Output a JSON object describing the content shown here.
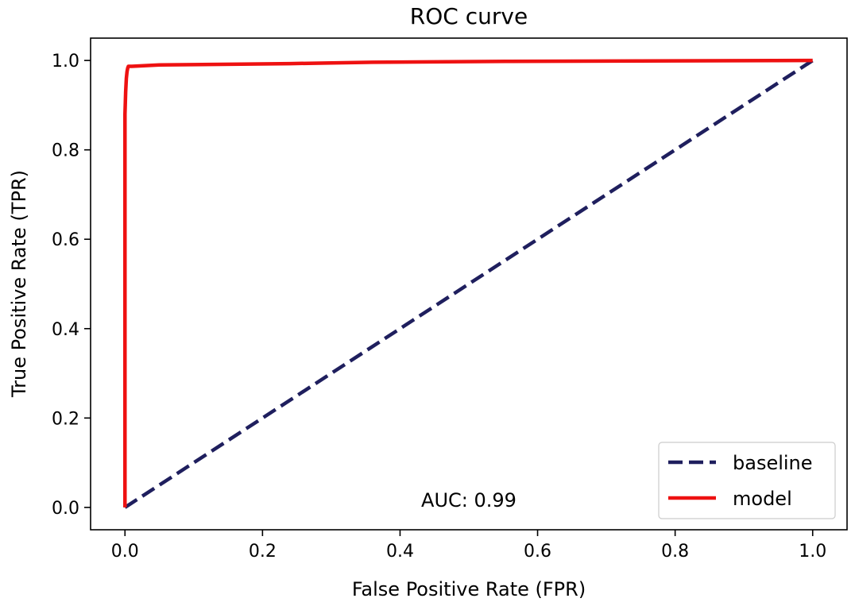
{
  "chart_data": {
    "type": "line",
    "title": "ROC curve",
    "xlabel": "False Positive Rate (FPR)",
    "ylabel": "True Positive Rate (TPR)",
    "xlim": [
      -0.05,
      1.05
    ],
    "ylim": [
      -0.05,
      1.05
    ],
    "xticks": [
      "0.0",
      "0.2",
      "0.4",
      "0.6",
      "0.8",
      "1.0"
    ],
    "yticks": [
      "0.0",
      "0.2",
      "0.4",
      "0.6",
      "0.8",
      "1.0"
    ],
    "grid": false,
    "legend_position": "lower-right",
    "annotation": "AUC: 0.99",
    "series": [
      {
        "name": "baseline",
        "style": "dashed",
        "color": "#1f1f5e",
        "x": [
          0,
          1
        ],
        "y": [
          0,
          1
        ]
      },
      {
        "name": "model",
        "style": "solid",
        "color": "#ee1111",
        "x": [
          0,
          0,
          0.001,
          0.002,
          0.003,
          0.004,
          0.005,
          0.01,
          0.05,
          0.24,
          0.36,
          0.56,
          1.0
        ],
        "y": [
          0,
          0.88,
          0.93,
          0.96,
          0.975,
          0.983,
          0.987,
          0.987,
          0.99,
          0.993,
          0.996,
          0.998,
          1.0
        ]
      }
    ]
  }
}
